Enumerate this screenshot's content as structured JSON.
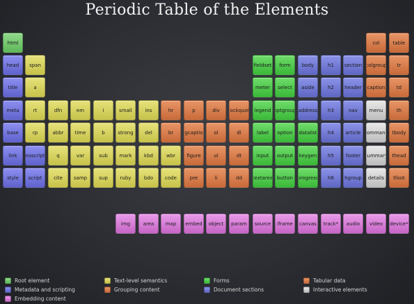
{
  "title": "Periodic Table of the Elements",
  "colors": {
    "root": "#6cc666",
    "meta": "#6a6de0",
    "text": "#d8d45a",
    "group": "#d87a48",
    "forms": "#4ac848",
    "section": "#6a72d8",
    "tabular": "#d87a48",
    "interact": "#d2d2d2",
    "embed": "#d678d6"
  },
  "elements": {
    "html": "html",
    "head": "head",
    "title": "title",
    "meta": "meta",
    "base": "base",
    "link": "link",
    "style": "style",
    "span": "span",
    "a": "a",
    "noscript": "noscript",
    "script": "script",
    "rt": "rt",
    "rp": "rp",
    "q": "q",
    "cite": "cite",
    "dfn": "dfn",
    "abbr": "abbr",
    "var": "var",
    "samp": "samp",
    "em": "em",
    "time": "time",
    "sub": "sub",
    "sup": "sup",
    "i": "i",
    "b": "b",
    "mark": "mark",
    "ruby": "ruby",
    "small": "small",
    "strong": "strong",
    "kbd": "kbd",
    "bdo": "bdo",
    "ins": "ins",
    "del": "del",
    "wbr": "wbr",
    "code": "code",
    "hr": "hr",
    "br": "br",
    "p": "p",
    "figcaption": "figcaption",
    "figure": "figure",
    "pre": "pre",
    "div": "div",
    "ol": "ol",
    "ul": "ul",
    "li": "li",
    "blockquote": "blockquote",
    "dl": "dl",
    "dt": "dt",
    "dd": "dd",
    "fieldset": "fieldset",
    "meter": "meter",
    "legend": "legend",
    "label": "label",
    "input": "input",
    "textarea": "textarea",
    "form": "form",
    "select": "select",
    "optgroup": "optgroup",
    "option": "option",
    "output": "output",
    "button": "button",
    "datalist": "datalist",
    "keygen": "keygen",
    "progress": "progress",
    "body": "body",
    "aside": "aside",
    "address": "address",
    "h1": "h1",
    "h2": "h2",
    "h3": "h3",
    "h4": "h4",
    "h5": "h5",
    "h6": "h6",
    "section": "section",
    "header": "header",
    "nav": "nav",
    "article": "article",
    "footer": "footer",
    "hgroup": "hgroup",
    "menu": "menu",
    "command": "command",
    "summary": "summary",
    "details": "details",
    "col": "col",
    "colgroup": "colgroup",
    "caption": "caption",
    "table": "table",
    "tr": "tr",
    "td": "td",
    "th": "th",
    "tbody": "tbody",
    "thead": "thead",
    "tfoot": "tfoot",
    "img": "img",
    "area": "area",
    "map": "map",
    "embed": "embed",
    "object": "object",
    "param": "param",
    "source": "source",
    "iframe": "iframe",
    "canvas": "canvas",
    "track": "track*",
    "audio": "audio",
    "video": "video",
    "device": "device*"
  },
  "legend": {
    "root": "Root element",
    "meta": "Metadata and scripting",
    "embed": "Embedding content",
    "text": "Text-level semantics",
    "group": "Grouping content",
    "forms": "Forms",
    "section": "Document sections",
    "tabular": "Tabular data",
    "interact": "Interactive elements"
  }
}
